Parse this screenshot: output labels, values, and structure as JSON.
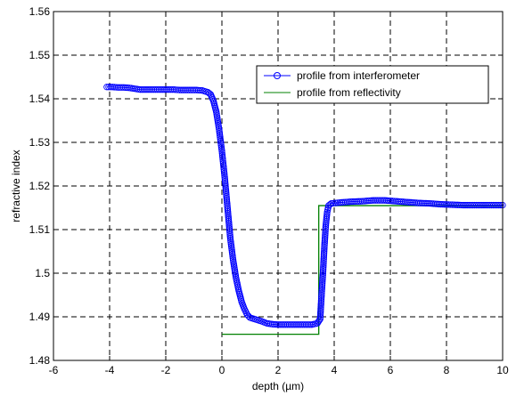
{
  "chart_data": {
    "type": "line",
    "title": "",
    "xlabel": "depth (µm)",
    "ylabel": "refractive index",
    "xlim": [
      -6,
      10
    ],
    "ylim": [
      1.48,
      1.56
    ],
    "xticks": [
      -6,
      -4,
      -2,
      0,
      2,
      4,
      6,
      8,
      10
    ],
    "xtick_labels": [
      "-6",
      "-4",
      "-2",
      "0",
      "2",
      "4",
      "6",
      "8",
      "10"
    ],
    "yticks": [
      1.48,
      1.49,
      1.5,
      1.51,
      1.52,
      1.53,
      1.54,
      1.55,
      1.56
    ],
    "ytick_labels": [
      "1.48",
      "1.49",
      "1.5",
      "1.51",
      "1.52",
      "1.53",
      "1.54",
      "1.55",
      "1.56"
    ],
    "grid": true,
    "legend_position": "top-right",
    "series": [
      {
        "name": "profile from interferometer",
        "color": "#0000ff",
        "marker": "circle",
        "points": [
          [
            -4.1,
            1.5427
          ],
          [
            -3.9,
            1.5427
          ],
          [
            -3.7,
            1.5426
          ],
          [
            -3.5,
            1.5426
          ],
          [
            -3.3,
            1.5425
          ],
          [
            -3.1,
            1.5423
          ],
          [
            -2.9,
            1.5421
          ],
          [
            -2.7,
            1.5421
          ],
          [
            -2.5,
            1.5421
          ],
          [
            -2.3,
            1.5421
          ],
          [
            -2.1,
            1.5421
          ],
          [
            -1.9,
            1.5421
          ],
          [
            -1.7,
            1.5421
          ],
          [
            -1.5,
            1.542
          ],
          [
            -1.3,
            1.542
          ],
          [
            -1.1,
            1.542
          ],
          [
            -0.9,
            1.542
          ],
          [
            -0.7,
            1.5419
          ],
          [
            -0.5,
            1.5415
          ],
          [
            -0.4,
            1.541
          ],
          [
            -0.3,
            1.5395
          ],
          [
            -0.2,
            1.537
          ],
          [
            -0.1,
            1.533
          ],
          [
            0.0,
            1.528
          ],
          [
            0.1,
            1.522
          ],
          [
            0.2,
            1.515
          ],
          [
            0.3,
            1.508
          ],
          [
            0.4,
            1.503
          ],
          [
            0.5,
            1.499
          ],
          [
            0.6,
            1.496
          ],
          [
            0.7,
            1.4935
          ],
          [
            0.8,
            1.4918
          ],
          [
            0.9,
            1.4905
          ],
          [
            1.0,
            1.4898
          ],
          [
            1.2,
            1.4894
          ],
          [
            1.4,
            1.489
          ],
          [
            1.6,
            1.4885
          ],
          [
            1.8,
            1.4883
          ],
          [
            2.0,
            1.4882
          ],
          [
            2.2,
            1.4882
          ],
          [
            2.4,
            1.4882
          ],
          [
            2.6,
            1.4882
          ],
          [
            2.8,
            1.4882
          ],
          [
            3.0,
            1.4882
          ],
          [
            3.2,
            1.4882
          ],
          [
            3.4,
            1.4885
          ],
          [
            3.5,
            1.4895
          ],
          [
            3.55,
            1.495
          ],
          [
            3.6,
            1.5
          ],
          [
            3.65,
            1.506
          ],
          [
            3.7,
            1.511
          ],
          [
            3.75,
            1.514
          ],
          [
            3.8,
            1.5155
          ],
          [
            3.9,
            1.516
          ],
          [
            4.2,
            1.5162
          ],
          [
            4.6,
            1.5164
          ],
          [
            5.0,
            1.5165
          ],
          [
            5.4,
            1.5167
          ],
          [
            5.8,
            1.5167
          ],
          [
            6.2,
            1.5165
          ],
          [
            6.6,
            1.5163
          ],
          [
            7.0,
            1.5161
          ],
          [
            7.4,
            1.516
          ],
          [
            7.8,
            1.5158
          ],
          [
            8.2,
            1.5157
          ],
          [
            8.6,
            1.5156
          ],
          [
            9.0,
            1.5156
          ],
          [
            9.4,
            1.5156
          ],
          [
            9.8,
            1.5156
          ],
          [
            10.0,
            1.5156
          ]
        ]
      },
      {
        "name": "profile from reflectivity",
        "color": "#008000",
        "marker": "none",
        "points": [
          [
            0.0,
            1.486
          ],
          [
            3.45,
            1.486
          ],
          [
            3.45,
            1.5155
          ],
          [
            10.0,
            1.5155
          ]
        ]
      }
    ]
  }
}
